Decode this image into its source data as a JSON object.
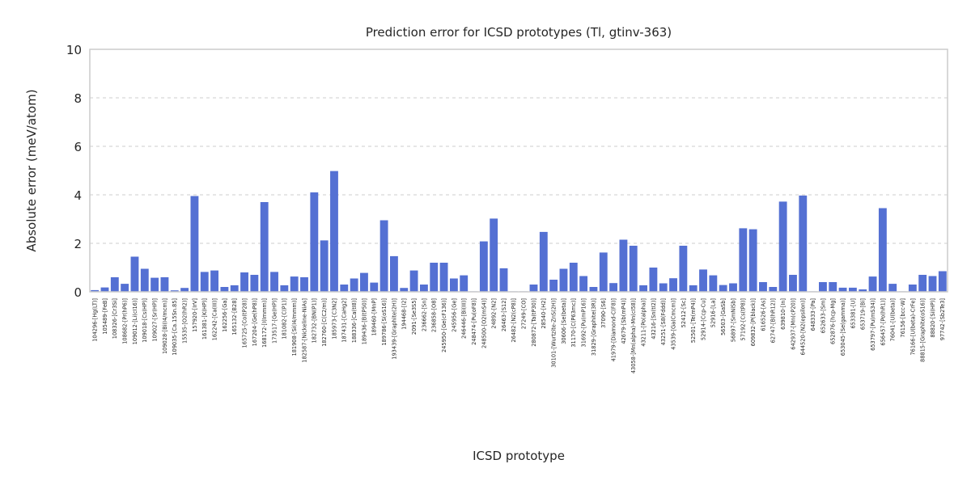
{
  "chart_data": {
    "type": "bar",
    "title": "Prediction error for ICSD prototypes (Tl, gtinv-363)",
    "xlabel": "ICSD prototype",
    "ylabel": "Absolute error (meV/atom)",
    "ylim": [
      0,
      10
    ],
    "yticks": [
      "0",
      "2",
      "4",
      "6",
      "8",
      "10"
    ],
    "grid": true,
    "bar_color": "#5470d3",
    "categories": [
      "104296-[Hg(LT)]",
      "105489-[FeB]",
      "108326-[Cr3Si]",
      "108682-[Pr(hP6)]",
      "109012-[Li(cI16)]",
      "109018-[Cs(HP)]",
      "109027-[Sr(HP)]",
      "109028-[Bi(I4/mcm)]",
      "109035-[Ca.15Sn.85]",
      "15535-[O2(hR2)]",
      "157920-[IrV]",
      "161381-[K(HP)]",
      "162242-[Ca(III)]",
      "162256-[Ga]",
      "165132-[B28]",
      "165725-[Co(tP28)]",
      "167204-[Ge(hP8)]",
      "168172-[I(Immm)]",
      "173517-[Ge(HP)]",
      "181082-[C(P1)]",
      "181908-[Si(I4/mmm)]",
      "182587-[Nickeline-NiAs]",
      "182732-[BN(P1)]",
      "182760-[C(C2/m)]",
      "185973-[C3N2]",
      "187431-[CaHg2]",
      "188336-[Ca(tI8)]",
      "189436-[B(tP50)]",
      "189460-[MnP]",
      "189786-[S(oS16)]",
      "193439-[Graphite(2H)]",
      "194468-[I2]",
      "2091-[Se3S5]",
      "236662-[Sn]",
      "236858-[O8]",
      "245950-[Ge(cF136)]",
      "245956-[Ge]",
      "246446-[Bi(III)]",
      "248474-[Pu(oF8)]",
      "248500-[O2(mS4)]",
      "24892-[N2]",
      "26463-[S12]",
      "26482-[N2(cP8)]",
      "27249-[CO]",
      "280872-[Ta(tP30)]",
      "28540-[H2]",
      "30101-[Wurtzite-ZnS(2H)]",
      "30606-[Se(beta)]",
      "31170-[C(P63mc)]",
      "31692-[Pu(mP16)]",
      "31829-[Graphite(3R)]",
      "37090-[S6]",
      "41979-[Diamond-C(F8)]",
      "42679-[Sb(mP4)]",
      "43058-[Mn(alpha)-Mn(cI58)]",
      "43211-[Po(alpha)]",
      "43216-[Sn(tI2)]",
      "43251-[S8(Fddd)]",
      "43539-[Ga(Cmcm)]",
      "52412-[Sc]",
      "52501-[Te(mP4)]",
      "52914-[Ccp-Cu]",
      "52916-[La]",
      "56503-[GaSb]",
      "56897-[SmNiSb]",
      "57192-[Cs(tP8)]",
      "609832-[P(black)]",
      "616526-[As]",
      "62747-[B(hR12)]",
      "639810-[In]",
      "642937-[Mn(cP20)]",
      "644520-[N2(epsilon)]",
      "648333-[Pa]",
      "652633-[Sm]",
      "652876-[hcp-Mg]",
      "653045-[Se(gamma)]",
      "653381-[U]",
      "653719-[Bi]",
      "653797-[Pu(mS34)]",
      "656457-[Po(hR1)]",
      "76041-[U(beta)]",
      "76156-[bcc-W]",
      "76166-[U(beta)-CrFe]",
      "88815-[Graphite(oS16)]",
      "88820-[Si(HP)]",
      "97742-[Sb2Te3]"
    ],
    "values": [
      0.07,
      0.18,
      0.6,
      0.33,
      1.45,
      0.95,
      0.58,
      0.6,
      0.06,
      0.16,
      3.95,
      0.82,
      0.88,
      0.2,
      0.27,
      0.8,
      0.7,
      3.7,
      0.82,
      0.27,
      0.63,
      0.6,
      4.1,
      2.12,
      4.98,
      0.3,
      0.55,
      0.78,
      0.38,
      2.95,
      1.47,
      0.16,
      0.88,
      0.3,
      1.2,
      1.2,
      0.55,
      0.68,
      0.02,
      2.08,
      3.02,
      0.97,
      0.02,
      0.02,
      0.3,
      2.47,
      0.5,
      0.95,
      1.2,
      0.65,
      0.2,
      1.62,
      0.36,
      2.15,
      1.9,
      0.27,
      1.0,
      0.35,
      0.56,
      1.9,
      0.27,
      0.92,
      0.68,
      0.28,
      0.35,
      2.62,
      2.58,
      0.4,
      0.2,
      3.72,
      0.7,
      3.97,
      0.02,
      0.4,
      0.4,
      0.17,
      0.17,
      0.1,
      0.63,
      3.45,
      0.33,
      0.02,
      0.3,
      0.7,
      0.65,
      0.85
    ]
  }
}
